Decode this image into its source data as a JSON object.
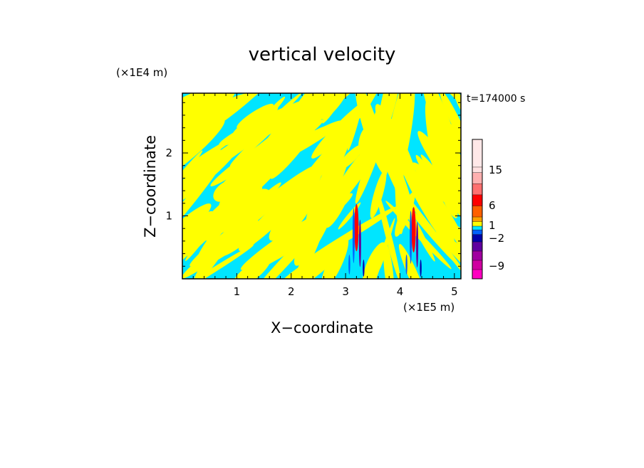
{
  "chart_data": {
    "type": "heatmap",
    "title": "vertical velocity",
    "xlabel": "X−coordinate",
    "ylabel": "Z−coordinate",
    "x_unit": "(×1E5 m)",
    "y_unit": "(×1E4 m)",
    "time_label": "t=174000 s",
    "xlim": [
      0,
      5.12
    ],
    "ylim": [
      0,
      2.95
    ],
    "x_ticks": [
      1,
      2,
      3,
      4,
      5
    ],
    "x_tick_labels": [
      "1",
      "2",
      "3",
      "4",
      "5"
    ],
    "y_ticks": [
      1,
      2
    ],
    "y_tick_labels": [
      "1",
      "2"
    ],
    "dominant_fields": [
      {
        "name": "",
        "range": [
          -1,
          0
        ],
        "color": "#00e5ff"
      },
      {
        "name": "",
        "range": [
          0,
          1
        ],
        "color": "#ffff00"
      }
    ],
    "updraft_cores": [
      {
        "x": 3.2,
        "z_top": 1.25,
        "peak": "red"
      },
      {
        "x": 4.25,
        "z_top": 1.2,
        "peak": "red"
      }
    ],
    "colorbar": {
      "levels_top_to_bottom": [
        {
          "color": "#ffe8e8"
        },
        {
          "color": "#ffe0e0"
        },
        {
          "color": "#ffb0b0"
        },
        {
          "color": "#ff7070"
        },
        {
          "color": "#ff0000"
        },
        {
          "color": "#ff6000"
        },
        {
          "color": "#ffa000"
        },
        {
          "color": "#ffff00"
        },
        {
          "color": "#00e5ff"
        },
        {
          "color": "#0060ff"
        },
        {
          "color": "#0000aa"
        },
        {
          "color": "#6000a0"
        },
        {
          "color": "#a000a0"
        },
        {
          "color": "#d000a0"
        },
        {
          "color": "#ff00c0"
        }
      ],
      "tick_labels": [
        "15",
        "6",
        "1",
        "−2",
        "−9"
      ]
    }
  }
}
